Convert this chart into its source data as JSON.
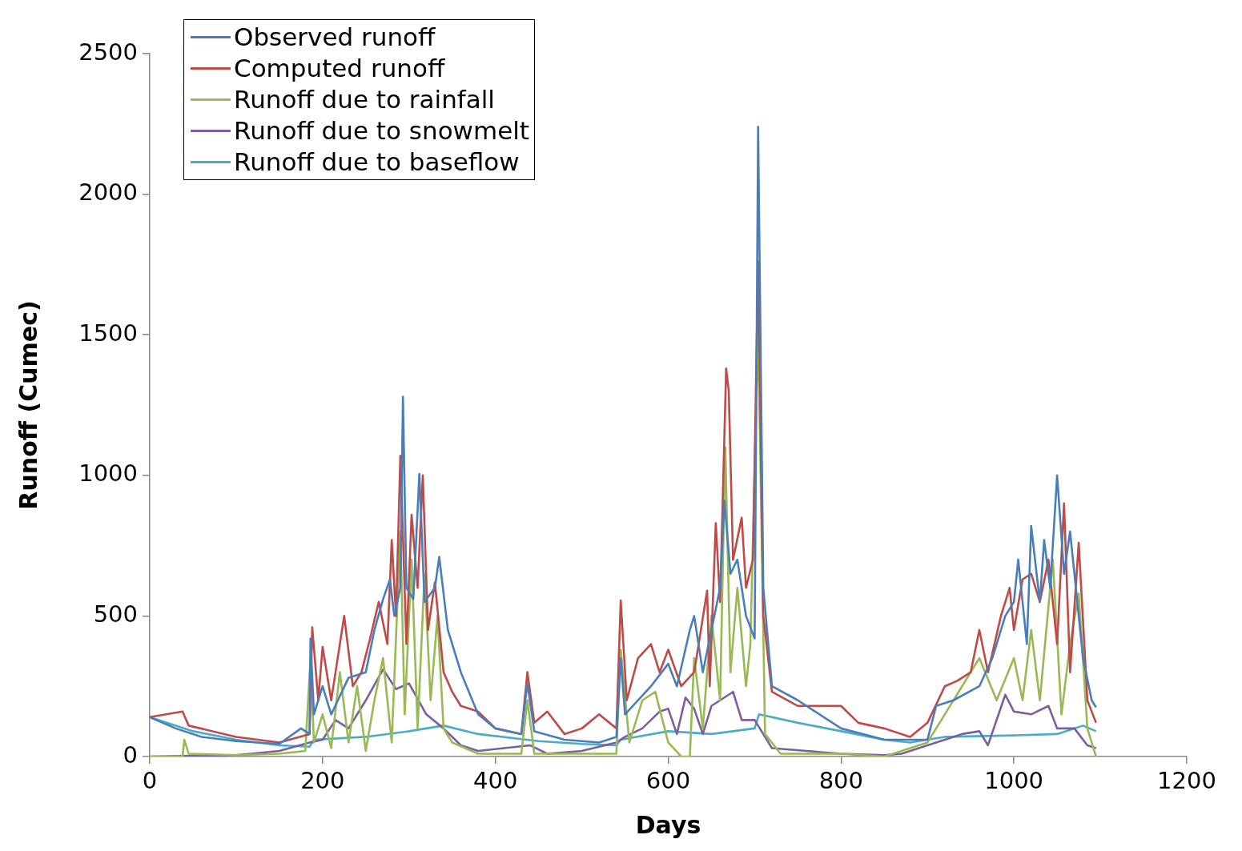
{
  "chart_data": {
    "type": "line",
    "xlabel": "Days",
    "ylabel": "Runoff (Cumec)",
    "xlim": [
      0,
      1200
    ],
    "xticks": [
      0,
      200,
      400,
      600,
      800,
      1000,
      1200
    ],
    "ylim": [
      0,
      2500
    ],
    "yticks": [
      0,
      500,
      1000,
      1500,
      2000,
      2500
    ],
    "grid": false,
    "legend": "top left",
    "marker": "none",
    "line_style": "solid",
    "series": [
      {
        "name": "Observed runoff",
        "color": "#4a7ebb",
        "x": [
          0,
          30,
          60,
          100,
          150,
          175,
          185,
          186,
          190,
          200,
          210,
          230,
          250,
          260,
          270,
          278,
          283,
          290,
          293,
          297,
          305,
          312,
          318,
          330,
          335,
          345,
          360,
          380,
          400,
          430,
          437,
          445,
          480,
          520,
          540,
          545,
          550,
          580,
          600,
          610,
          625,
          630,
          640,
          650,
          660,
          665,
          672,
          680,
          690,
          700,
          704,
          710,
          720,
          750,
          800,
          850,
          900,
          910,
          930,
          960,
          975,
          990,
          1000,
          1005,
          1015,
          1020,
          1030,
          1035,
          1042,
          1050,
          1058,
          1065,
          1080,
          1090,
          1095
        ],
        "values": [
          140,
          100,
          70,
          55,
          45,
          100,
          80,
          420,
          150,
          250,
          150,
          280,
          300,
          450,
          560,
          630,
          500,
          600,
          1280,
          600,
          560,
          1005,
          550,
          600,
          710,
          450,
          300,
          150,
          100,
          80,
          260,
          90,
          60,
          50,
          70,
          350,
          150,
          250,
          330,
          250,
          450,
          500,
          300,
          450,
          600,
          910,
          650,
          700,
          500,
          420,
          2240,
          600,
          250,
          200,
          100,
          60,
          60,
          180,
          200,
          250,
          350,
          500,
          550,
          700,
          400,
          820,
          550,
          770,
          600,
          1000,
          650,
          800,
          350,
          200,
          175
        ]
      },
      {
        "name": "Computed runoff",
        "color": "#be4b48",
        "x": [
          0,
          38,
          45,
          100,
          150,
          185,
          188,
          195,
          200,
          210,
          225,
          235,
          245,
          255,
          265,
          275,
          280,
          285,
          290,
          297,
          303,
          310,
          316,
          322,
          330,
          340,
          350,
          360,
          380,
          400,
          430,
          437,
          445,
          460,
          480,
          500,
          520,
          540,
          545,
          552,
          565,
          580,
          590,
          600,
          615,
          630,
          645,
          648,
          655,
          660,
          667,
          670,
          675,
          685,
          690,
          698,
          704,
          710,
          720,
          750,
          800,
          820,
          850,
          880,
          900,
          920,
          935,
          950,
          960,
          970,
          985,
          995,
          1000,
          1010,
          1020,
          1030,
          1040,
          1050,
          1058,
          1065,
          1075,
          1085,
          1095
        ],
        "values": [
          140,
          160,
          110,
          70,
          50,
          80,
          460,
          200,
          390,
          200,
          500,
          250,
          300,
          420,
          550,
          400,
          770,
          500,
          1070,
          400,
          860,
          600,
          1000,
          450,
          620,
          300,
          230,
          180,
          160,
          100,
          80,
          300,
          120,
          160,
          80,
          100,
          150,
          100,
          555,
          200,
          350,
          400,
          300,
          380,
          250,
          300,
          590,
          250,
          830,
          550,
          1380,
          1300,
          700,
          850,
          600,
          700,
          1760,
          500,
          230,
          180,
          180,
          120,
          100,
          70,
          120,
          250,
          270,
          300,
          450,
          300,
          500,
          600,
          450,
          630,
          650,
          550,
          700,
          400,
          900,
          300,
          760,
          200,
          120
        ]
      },
      {
        "name": "Runoff due to rainfall",
        "color": "#98b954",
        "x": [
          0,
          38,
          40,
          45,
          100,
          150,
          180,
          186,
          190,
          200,
          210,
          220,
          230,
          240,
          250,
          260,
          270,
          280,
          290,
          295,
          303,
          310,
          318,
          325,
          333,
          340,
          350,
          380,
          430,
          437,
          445,
          500,
          540,
          545,
          555,
          570,
          585,
          600,
          615,
          625,
          630,
          640,
          650,
          660,
          666,
          672,
          680,
          690,
          695,
          704,
          712,
          730,
          800,
          850,
          900,
          920,
          940,
          960,
          980,
          1000,
          1010,
          1020,
          1030,
          1045,
          1055,
          1065,
          1075,
          1085,
          1095
        ],
        "values": [
          0,
          0,
          60,
          10,
          5,
          10,
          20,
          350,
          50,
          150,
          30,
          300,
          50,
          250,
          20,
          200,
          350,
          50,
          800,
          150,
          700,
          100,
          650,
          200,
          500,
          100,
          50,
          10,
          10,
          200,
          10,
          10,
          10,
          380,
          50,
          200,
          230,
          50,
          0,
          0,
          350,
          100,
          500,
          200,
          1100,
          300,
          600,
          250,
          400,
          1520,
          80,
          10,
          10,
          0,
          50,
          150,
          250,
          350,
          200,
          350,
          200,
          450,
          200,
          700,
          150,
          400,
          580,
          100,
          0
        ]
      },
      {
        "name": "Runoff due to snowmelt",
        "color": "#7d5fa0",
        "x": [
          0,
          100,
          150,
          185,
          200,
          215,
          230,
          250,
          270,
          285,
          300,
          320,
          340,
          360,
          380,
          440,
          460,
          500,
          540,
          550,
          570,
          590,
          600,
          610,
          620,
          630,
          640,
          650,
          665,
          675,
          685,
          700,
          720,
          760,
          800,
          850,
          870,
          900,
          940,
          960,
          970,
          990,
          1000,
          1020,
          1040,
          1050,
          1070,
          1085,
          1095
        ],
        "values": [
          0,
          5,
          20,
          50,
          60,
          130,
          100,
          200,
          310,
          240,
          260,
          150,
          100,
          40,
          20,
          40,
          10,
          20,
          50,
          70,
          100,
          160,
          170,
          80,
          210,
          170,
          80,
          180,
          210,
          230,
          130,
          130,
          30,
          20,
          10,
          5,
          10,
          40,
          80,
          90,
          40,
          220,
          160,
          150,
          180,
          100,
          100,
          40,
          30
        ]
      },
      {
        "name": "Runoff due to baseflow",
        "color": "#4bacc6",
        "x": [
          0,
          50,
          100,
          150,
          185,
          190,
          250,
          300,
          340,
          380,
          450,
          500,
          540,
          545,
          600,
          650,
          700,
          705,
          750,
          800,
          850,
          880,
          920,
          1000,
          1050,
          1080,
          1095
        ],
        "values": [
          140,
          90,
          60,
          40,
          35,
          60,
          70,
          90,
          110,
          80,
          55,
          45,
          40,
          60,
          90,
          80,
          100,
          150,
          120,
          90,
          60,
          50,
          70,
          75,
          80,
          110,
          90
        ]
      }
    ]
  }
}
